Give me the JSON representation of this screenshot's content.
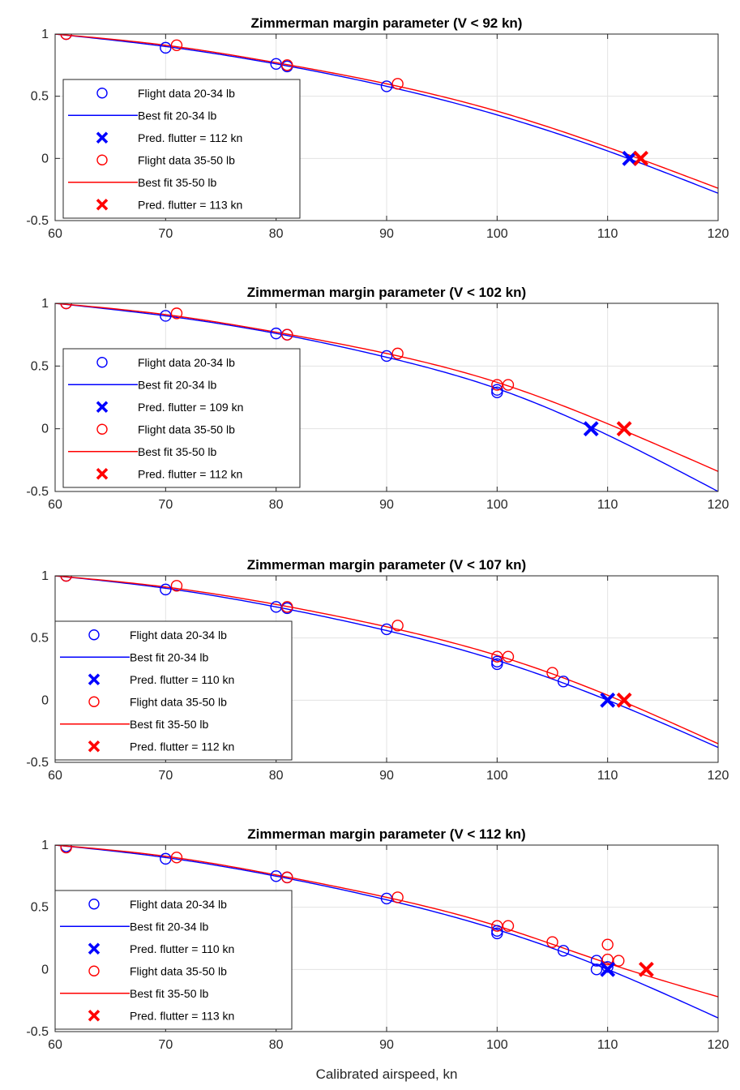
{
  "figure": {
    "xlabel": "Calibrated airspeed, kn"
  },
  "chart_data": [
    {
      "type": "scatter",
      "title": "Zimmerman margin parameter (V < 92 kn)",
      "xlim": [
        60,
        120
      ],
      "ylim": [
        -0.5,
        1
      ],
      "xticks": [
        "60",
        "70",
        "80",
        "90",
        "100",
        "110",
        "120"
      ],
      "yticks": [
        "-0.5",
        "0",
        "0.5",
        "1"
      ],
      "grid": true,
      "legend_position": "bottom-left",
      "series": [
        {
          "name": "Flight data 20-34 lb",
          "kind": "points",
          "marker": "circle",
          "color": "#0000FF",
          "x": [
            61,
            70,
            80,
            81,
            90
          ],
          "y": [
            1.0,
            0.89,
            0.76,
            0.74,
            0.58
          ]
        },
        {
          "name": "Best fit 20-34 lb",
          "kind": "line",
          "color": "#0000FF",
          "x": [
            60,
            70,
            80,
            90,
            100,
            110,
            120
          ],
          "y": [
            1.0,
            0.9,
            0.76,
            0.58,
            0.35,
            0.06,
            -0.28
          ]
        },
        {
          "name": "Pred. flutter = 112 kn",
          "kind": "marker",
          "marker": "x",
          "color": "#0000FF",
          "x": [
            112
          ],
          "y": [
            0
          ]
        },
        {
          "name": "Flight data 35-50 lb",
          "kind": "points",
          "marker": "circle",
          "color": "#FF0000",
          "x": [
            61,
            71,
            81,
            91
          ],
          "y": [
            1.0,
            0.91,
            0.75,
            0.6
          ]
        },
        {
          "name": "Best fit 35-50 lb",
          "kind": "line",
          "color": "#FF0000",
          "x": [
            60,
            70,
            80,
            90,
            100,
            110,
            120
          ],
          "y": [
            1.0,
            0.91,
            0.77,
            0.6,
            0.38,
            0.09,
            -0.24
          ]
        },
        {
          "name": "Pred. flutter = 113 kn",
          "kind": "marker",
          "marker": "x",
          "color": "#FF0000",
          "x": [
            113
          ],
          "y": [
            0
          ]
        }
      ]
    },
    {
      "type": "scatter",
      "title": "Zimmerman margin parameter (V < 102 kn)",
      "xlim": [
        60,
        120
      ],
      "ylim": [
        -0.5,
        1
      ],
      "xticks": [
        "60",
        "70",
        "80",
        "90",
        "100",
        "110",
        "120"
      ],
      "yticks": [
        "-0.5",
        "0",
        "0.5",
        "1"
      ],
      "grid": true,
      "legend_position": "bottom-left",
      "series": [
        {
          "name": "Flight data 20-34 lb",
          "kind": "points",
          "marker": "circle",
          "color": "#0000FF",
          "x": [
            61,
            70,
            80,
            81,
            90,
            100,
            100
          ],
          "y": [
            1.0,
            0.9,
            0.76,
            0.75,
            0.58,
            0.31,
            0.29
          ]
        },
        {
          "name": "Best fit 20-34 lb",
          "kind": "line",
          "color": "#0000FF",
          "x": [
            60,
            70,
            80,
            90,
            100,
            110,
            120
          ],
          "y": [
            1.0,
            0.9,
            0.76,
            0.57,
            0.32,
            -0.05,
            -0.5
          ]
        },
        {
          "name": "Pred. flutter = 109 kn",
          "kind": "marker",
          "marker": "x",
          "color": "#0000FF",
          "x": [
            108.5
          ],
          "y": [
            0
          ]
        },
        {
          "name": "Flight data 35-50 lb",
          "kind": "points",
          "marker": "circle",
          "color": "#FF0000",
          "x": [
            61,
            71,
            81,
            91,
            100,
            101
          ],
          "y": [
            1.0,
            0.92,
            0.75,
            0.6,
            0.35,
            0.35
          ]
        },
        {
          "name": "Best fit 35-50 lb",
          "kind": "line",
          "color": "#FF0000",
          "x": [
            60,
            70,
            80,
            90,
            100,
            110,
            120
          ],
          "y": [
            1.0,
            0.91,
            0.77,
            0.6,
            0.37,
            0.04,
            -0.34
          ]
        },
        {
          "name": "Pred. flutter = 112 kn",
          "kind": "marker",
          "marker": "x",
          "color": "#FF0000",
          "x": [
            111.5
          ],
          "y": [
            0
          ]
        }
      ]
    },
    {
      "type": "scatter",
      "title": "Zimmerman margin parameter (V < 107 kn)",
      "xlim": [
        60,
        120
      ],
      "ylim": [
        -0.5,
        1
      ],
      "xticks": [
        "60",
        "70",
        "80",
        "90",
        "100",
        "110",
        "120"
      ],
      "yticks": [
        "-0.5",
        "0",
        "0.5",
        "1"
      ],
      "grid": true,
      "legend_position": "bottom-left",
      "series": [
        {
          "name": "Flight data 20-34 lb",
          "kind": "points",
          "marker": "circle",
          "color": "#0000FF",
          "x": [
            61,
            70,
            80,
            81,
            90,
            100,
            100,
            106
          ],
          "y": [
            1.0,
            0.89,
            0.75,
            0.74,
            0.57,
            0.31,
            0.29,
            0.15
          ]
        },
        {
          "name": "Best fit 20-34 lb",
          "kind": "line",
          "color": "#0000FF",
          "x": [
            60,
            70,
            80,
            90,
            100,
            110,
            120
          ],
          "y": [
            1.0,
            0.9,
            0.75,
            0.56,
            0.32,
            0.0,
            -0.38
          ]
        },
        {
          "name": "Pred. flutter = 110 kn",
          "kind": "marker",
          "marker": "x",
          "color": "#0000FF",
          "x": [
            110
          ],
          "y": [
            0
          ]
        },
        {
          "name": "Flight data 35-50 lb",
          "kind": "points",
          "marker": "circle",
          "color": "#FF0000",
          "x": [
            61,
            71,
            81,
            91,
            100,
            101,
            105
          ],
          "y": [
            1.0,
            0.92,
            0.75,
            0.6,
            0.35,
            0.35,
            0.22
          ]
        },
        {
          "name": "Best fit 35-50 lb",
          "kind": "line",
          "color": "#FF0000",
          "x": [
            60,
            70,
            80,
            90,
            100,
            110,
            120
          ],
          "y": [
            1.0,
            0.91,
            0.77,
            0.59,
            0.36,
            0.04,
            -0.35
          ]
        },
        {
          "name": "Pred. flutter = 112 kn",
          "kind": "marker",
          "marker": "x",
          "color": "#FF0000",
          "x": [
            111.5
          ],
          "y": [
            0
          ]
        }
      ]
    },
    {
      "type": "scatter",
      "title": "Zimmerman margin parameter (V < 112 kn)",
      "xlim": [
        60,
        120
      ],
      "ylim": [
        -0.5,
        1
      ],
      "xticks": [
        "60",
        "70",
        "80",
        "90",
        "100",
        "110",
        "120"
      ],
      "yticks": [
        "-0.5",
        "0",
        "0.5",
        "1"
      ],
      "grid": true,
      "legend_position": "bottom-left",
      "xlabel_ref": "figure.xlabel",
      "series": [
        {
          "name": "Flight data 20-34 lb",
          "kind": "points",
          "marker": "circle",
          "color": "#0000FF",
          "x": [
            61,
            70,
            80,
            81,
            90,
            100,
            100,
            106,
            109,
            109,
            110
          ],
          "y": [
            0.99,
            0.89,
            0.75,
            0.74,
            0.57,
            0.31,
            0.29,
            0.15,
            0.07,
            0.0,
            0.02
          ]
        },
        {
          "name": "Best fit 20-34 lb",
          "kind": "line",
          "color": "#0000FF",
          "x": [
            60,
            70,
            80,
            90,
            100,
            110,
            120
          ],
          "y": [
            1.0,
            0.9,
            0.75,
            0.56,
            0.32,
            0.0,
            -0.39
          ]
        },
        {
          "name": "Pred. flutter = 110 kn",
          "kind": "marker",
          "marker": "x",
          "color": "#0000FF",
          "x": [
            110
          ],
          "y": [
            0
          ]
        },
        {
          "name": "Flight data 35-50 lb",
          "kind": "points",
          "marker": "circle",
          "color": "#FF0000",
          "x": [
            61,
            71,
            81,
            91,
            100,
            101,
            105,
            110,
            110,
            111
          ],
          "y": [
            0.98,
            0.9,
            0.74,
            0.58,
            0.35,
            0.35,
            0.22,
            0.2,
            0.08,
            0.07
          ]
        },
        {
          "name": "Best fit 35-50 lb",
          "kind": "line",
          "color": "#FF0000",
          "x": [
            60,
            70,
            80,
            90,
            100,
            110,
            120
          ],
          "y": [
            1.0,
            0.91,
            0.76,
            0.58,
            0.35,
            0.05,
            -0.22
          ]
        },
        {
          "name": "Pred. flutter = 113 kn",
          "kind": "marker",
          "marker": "x",
          "color": "#FF0000",
          "x": [
            113.5
          ],
          "y": [
            0
          ]
        }
      ]
    }
  ]
}
